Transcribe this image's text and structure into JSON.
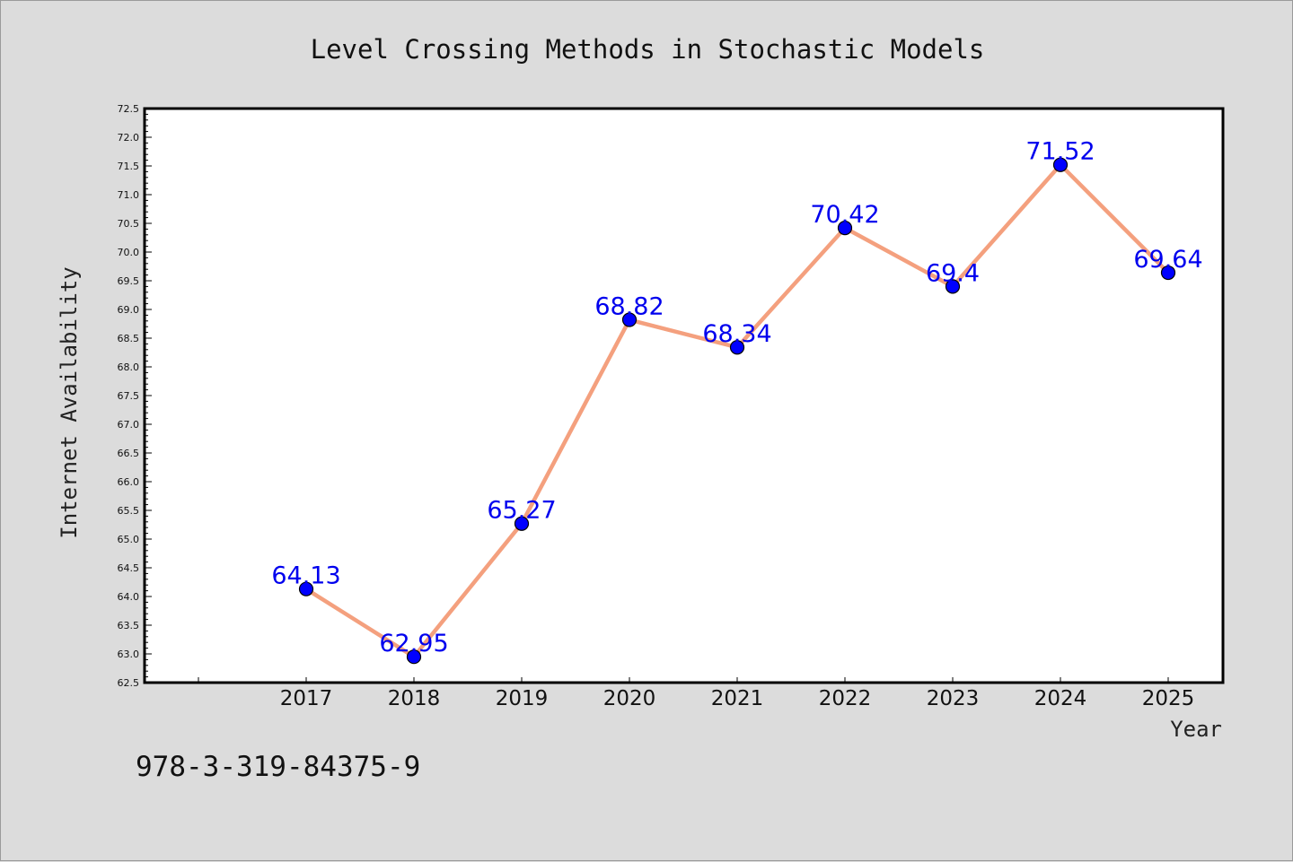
{
  "chart_data": {
    "type": "line",
    "title": "Level Crossing Methods in Stochastic Models",
    "xlabel": "Year",
    "ylabel": "Internet Availability",
    "categories": [
      "2017",
      "2018",
      "2019",
      "2020",
      "2021",
      "2022",
      "2023",
      "2024",
      "2025"
    ],
    "series": [
      {
        "values": [
          64.13,
          62.95,
          65.27,
          68.82,
          68.34,
          70.42,
          69.4,
          71.52,
          69.64
        ],
        "labels": [
          "64.13",
          "62.95",
          "65.27",
          "68.82",
          "68.34",
          "70.42",
          "69.4",
          "71.52",
          "69.64"
        ]
      }
    ],
    "ylim": [
      62.5,
      72.5
    ],
    "yticks": [
      "62.5",
      "63.0",
      "63.5",
      "64.0",
      "64.5",
      "65.0",
      "65.5",
      "66.0",
      "66.5",
      "67.0",
      "67.5",
      "68.0",
      "68.5",
      "69.0",
      "69.5",
      "70.0",
      "70.5",
      "71.0",
      "71.5",
      "72.0",
      "72.5"
    ],
    "grid": false,
    "legend": "none",
    "colors": {
      "line": "#f4a07e",
      "marker": "#0000ff",
      "data_label": "#0000ee",
      "background": "#dcdcdc",
      "plot_background": "#ffffff"
    }
  },
  "footer": {
    "isbn": "978-3-319-84375-9"
  }
}
